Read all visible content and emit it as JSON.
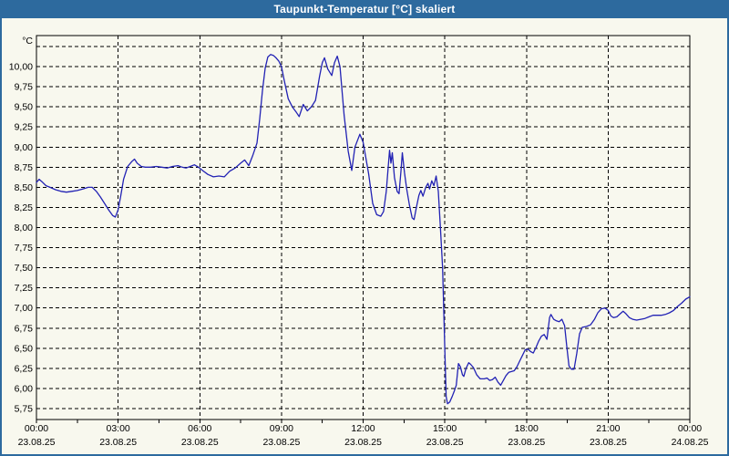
{
  "window": {
    "title": "Taupunkt-Temperatur [°C] skaliert"
  },
  "colors": {
    "titlebar_bg": "#2d6a9e",
    "frame_border": "#2d6a9e",
    "title_text": "#ffffff",
    "content_bg": "#f8f8ee",
    "grid_line": "#000000",
    "axis_text": "#000000",
    "series_line": "#2222b4"
  },
  "chart_data": {
    "type": "line",
    "title": "Taupunkt-Temperatur [°C] skaliert",
    "xlabel": "",
    "ylabel": "°C",
    "grid": true,
    "legend": "none",
    "y_axis": {
      "min": 5.75,
      "max": 10.25,
      "step": 0.25,
      "top_gridline_unlabeled": "10,25",
      "decimal_separator": ","
    },
    "y_tick_labels": [
      "10,00",
      "9,75",
      "9,50",
      "9,25",
      "9,00",
      "8,75",
      "8,50",
      "8,25",
      "8,00",
      "7,75",
      "7,50",
      "7,25",
      "7,00",
      "6,75",
      "6,50",
      "6,25",
      "6,00",
      "5,75"
    ],
    "x_axis": {
      "start": "23.08.25 00:00",
      "end": "24.08.25 00:00",
      "major_step_hours": 3,
      "minor_tick_hours": 1.5
    },
    "x_ticks": [
      {
        "time": "00:00",
        "date": "23.08.25"
      },
      {
        "time": "03:00",
        "date": "23.08.25"
      },
      {
        "time": "06:00",
        "date": "23.08.25"
      },
      {
        "time": "09:00",
        "date": "23.08.25"
      },
      {
        "time": "12:00",
        "date": "23.08.25"
      },
      {
        "time": "15:00",
        "date": "23.08.25"
      },
      {
        "time": "18:00",
        "date": "23.08.25"
      },
      {
        "time": "21:00",
        "date": "23.08.25"
      },
      {
        "time": "00:00",
        "date": "24.08.25"
      }
    ],
    "series": [
      {
        "name": "Taupunkt-Temperatur",
        "unit": "°C",
        "color": "#2222b4",
        "points": [
          [
            0.0,
            8.56
          ],
          [
            0.1,
            8.6
          ],
          [
            0.2,
            8.57
          ],
          [
            0.35,
            8.52
          ],
          [
            0.5,
            8.5
          ],
          [
            0.7,
            8.47
          ],
          [
            0.9,
            8.45
          ],
          [
            1.1,
            8.44
          ],
          [
            1.3,
            8.45
          ],
          [
            1.5,
            8.46
          ],
          [
            1.7,
            8.48
          ],
          [
            1.9,
            8.5
          ],
          [
            2.05,
            8.5
          ],
          [
            2.2,
            8.45
          ],
          [
            2.35,
            8.38
          ],
          [
            2.5,
            8.3
          ],
          [
            2.65,
            8.22
          ],
          [
            2.8,
            8.15
          ],
          [
            2.9,
            8.13
          ],
          [
            3.0,
            8.22
          ],
          [
            3.1,
            8.4
          ],
          [
            3.2,
            8.6
          ],
          [
            3.35,
            8.76
          ],
          [
            3.5,
            8.82
          ],
          [
            3.6,
            8.85
          ],
          [
            3.7,
            8.8
          ],
          [
            3.85,
            8.76
          ],
          [
            4.0,
            8.75
          ],
          [
            4.2,
            8.75
          ],
          [
            4.4,
            8.76
          ],
          [
            4.6,
            8.75
          ],
          [
            4.8,
            8.74
          ],
          [
            5.0,
            8.76
          ],
          [
            5.2,
            8.77
          ],
          [
            5.35,
            8.75
          ],
          [
            5.5,
            8.74
          ],
          [
            5.65,
            8.76
          ],
          [
            5.8,
            8.78
          ],
          [
            5.95,
            8.75
          ],
          [
            6.1,
            8.71
          ],
          [
            6.3,
            8.66
          ],
          [
            6.5,
            8.63
          ],
          [
            6.7,
            8.64
          ],
          [
            6.9,
            8.63
          ],
          [
            7.1,
            8.7
          ],
          [
            7.3,
            8.74
          ],
          [
            7.5,
            8.8
          ],
          [
            7.65,
            8.84
          ],
          [
            7.8,
            8.77
          ],
          [
            7.95,
            8.9
          ],
          [
            8.1,
            9.05
          ],
          [
            8.2,
            9.35
          ],
          [
            8.3,
            9.7
          ],
          [
            8.4,
            9.98
          ],
          [
            8.5,
            10.12
          ],
          [
            8.6,
            10.15
          ],
          [
            8.7,
            10.14
          ],
          [
            8.8,
            10.11
          ],
          [
            8.9,
            10.07
          ],
          [
            9.0,
            10.0
          ],
          [
            9.1,
            9.83
          ],
          [
            9.25,
            9.6
          ],
          [
            9.4,
            9.5
          ],
          [
            9.55,
            9.43
          ],
          [
            9.65,
            9.38
          ],
          [
            9.8,
            9.53
          ],
          [
            9.95,
            9.45
          ],
          [
            10.1,
            9.5
          ],
          [
            10.25,
            9.58
          ],
          [
            10.4,
            9.88
          ],
          [
            10.5,
            10.05
          ],
          [
            10.58,
            10.11
          ],
          [
            10.7,
            9.97
          ],
          [
            10.85,
            9.89
          ],
          [
            10.95,
            10.05
          ],
          [
            11.05,
            10.13
          ],
          [
            11.15,
            10.0
          ],
          [
            11.3,
            9.4
          ],
          [
            11.45,
            8.95
          ],
          [
            11.58,
            8.71
          ],
          [
            11.7,
            9.0
          ],
          [
            11.88,
            9.16
          ],
          [
            12.0,
            9.06
          ],
          [
            12.2,
            8.67
          ],
          [
            12.35,
            8.3
          ],
          [
            12.5,
            8.16
          ],
          [
            12.65,
            8.14
          ],
          [
            12.75,
            8.2
          ],
          [
            12.85,
            8.45
          ],
          [
            12.92,
            8.75
          ],
          [
            12.97,
            8.96
          ],
          [
            13.02,
            8.8
          ],
          [
            13.07,
            8.93
          ],
          [
            13.15,
            8.62
          ],
          [
            13.25,
            8.45
          ],
          [
            13.32,
            8.42
          ],
          [
            13.39,
            8.7
          ],
          [
            13.44,
            8.93
          ],
          [
            13.52,
            8.68
          ],
          [
            13.6,
            8.48
          ],
          [
            13.7,
            8.28
          ],
          [
            13.8,
            8.12
          ],
          [
            13.87,
            8.1
          ],
          [
            13.96,
            8.26
          ],
          [
            14.05,
            8.4
          ],
          [
            14.12,
            8.46
          ],
          [
            14.2,
            8.39
          ],
          [
            14.3,
            8.5
          ],
          [
            14.38,
            8.55
          ],
          [
            14.44,
            8.48
          ],
          [
            14.52,
            8.58
          ],
          [
            14.6,
            8.52
          ],
          [
            14.68,
            8.64
          ],
          [
            14.76,
            8.45
          ],
          [
            14.84,
            8.0
          ],
          [
            14.92,
            7.5
          ],
          [
            15.0,
            6.5
          ],
          [
            15.05,
            5.9
          ],
          [
            15.1,
            5.81
          ],
          [
            15.18,
            5.83
          ],
          [
            15.27,
            5.9
          ],
          [
            15.35,
            5.97
          ],
          [
            15.42,
            6.04
          ],
          [
            15.5,
            6.31
          ],
          [
            15.57,
            6.27
          ],
          [
            15.65,
            6.17
          ],
          [
            15.7,
            6.15
          ],
          [
            15.78,
            6.25
          ],
          [
            15.88,
            6.32
          ],
          [
            15.95,
            6.3
          ],
          [
            16.05,
            6.26
          ],
          [
            16.17,
            6.17
          ],
          [
            16.3,
            6.12
          ],
          [
            16.45,
            6.12
          ],
          [
            16.55,
            6.13
          ],
          [
            16.65,
            6.1
          ],
          [
            16.75,
            6.11
          ],
          [
            16.85,
            6.14
          ],
          [
            16.95,
            6.08
          ],
          [
            17.05,
            6.04
          ],
          [
            17.15,
            6.1
          ],
          [
            17.25,
            6.16
          ],
          [
            17.35,
            6.2
          ],
          [
            17.45,
            6.21
          ],
          [
            17.55,
            6.22
          ],
          [
            17.65,
            6.27
          ],
          [
            17.75,
            6.34
          ],
          [
            17.85,
            6.41
          ],
          [
            17.95,
            6.48
          ],
          [
            18.05,
            6.49
          ],
          [
            18.15,
            6.46
          ],
          [
            18.25,
            6.44
          ],
          [
            18.35,
            6.51
          ],
          [
            18.45,
            6.59
          ],
          [
            18.55,
            6.65
          ],
          [
            18.65,
            6.67
          ],
          [
            18.75,
            6.61
          ],
          [
            18.85,
            6.88
          ],
          [
            18.9,
            6.92
          ],
          [
            19.0,
            6.86
          ],
          [
            19.1,
            6.84
          ],
          [
            19.2,
            6.83
          ],
          [
            19.3,
            6.86
          ],
          [
            19.4,
            6.78
          ],
          [
            19.48,
            6.52
          ],
          [
            19.56,
            6.28
          ],
          [
            19.65,
            6.24
          ],
          [
            19.75,
            6.24
          ],
          [
            19.85,
            6.44
          ],
          [
            19.95,
            6.68
          ],
          [
            20.05,
            6.76
          ],
          [
            20.2,
            6.77
          ],
          [
            20.35,
            6.79
          ],
          [
            20.5,
            6.86
          ],
          [
            20.62,
            6.94
          ],
          [
            20.75,
            6.99
          ],
          [
            20.88,
            7.0
          ],
          [
            21.0,
            6.97
          ],
          [
            21.1,
            6.9
          ],
          [
            21.2,
            6.88
          ],
          [
            21.32,
            6.89
          ],
          [
            21.45,
            6.93
          ],
          [
            21.55,
            6.96
          ],
          [
            21.65,
            6.93
          ],
          [
            21.78,
            6.88
          ],
          [
            21.9,
            6.86
          ],
          [
            22.05,
            6.85
          ],
          [
            22.2,
            6.86
          ],
          [
            22.35,
            6.87
          ],
          [
            22.5,
            6.89
          ],
          [
            22.65,
            6.91
          ],
          [
            22.8,
            6.91
          ],
          [
            22.95,
            6.91
          ],
          [
            23.1,
            6.92
          ],
          [
            23.25,
            6.94
          ],
          [
            23.4,
            6.97
          ],
          [
            23.55,
            7.02
          ],
          [
            23.7,
            7.06
          ],
          [
            23.85,
            7.11
          ],
          [
            24.0,
            7.14
          ]
        ]
      }
    ]
  }
}
